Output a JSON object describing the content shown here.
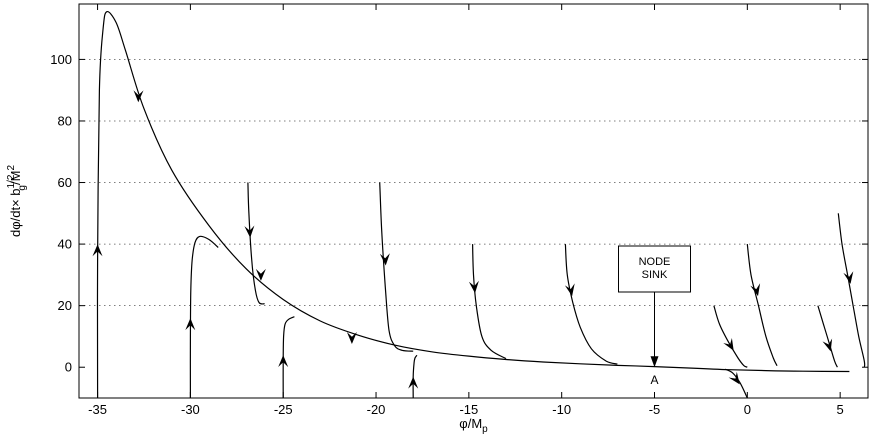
{
  "chart_data": {
    "type": "line",
    "xlabel": "φ/M",
    "xlabel_sub": "p",
    "ylabel": "dφ/dt× b",
    "ylabel_sub": "g",
    "ylabel_sup": "1/2",
    "ylabel_tail": "/M",
    "ylabel_tail_sup": "2",
    "xlim": [
      -36,
      6.5
    ],
    "ylim": [
      -10,
      118
    ],
    "xticks": [
      "-35",
      "-30",
      "-25",
      "-20",
      "-15",
      "-10",
      "-5",
      "0",
      "5"
    ],
    "yticks": [
      "0",
      "20",
      "40",
      "60",
      "80",
      "100"
    ],
    "grid": true,
    "annotation": {
      "box_lines": [
        "NODE",
        "SINK"
      ],
      "point_label": "A",
      "x": -5,
      "y": 0
    },
    "series": [
      {
        "x": [
          -35,
          -35,
          -34.9,
          -34.7,
          -34.5,
          -34.0,
          -33.5,
          -32.5,
          -31,
          -29,
          -27,
          -25,
          -23,
          -21,
          -19,
          -17,
          -15,
          -13,
          -11,
          -9,
          -7,
          -5,
          -3,
          -1,
          1,
          3,
          5.5
        ],
        "y": [
          -10,
          35,
          90,
          110,
          115.5,
          112,
          103,
          84,
          64,
          46,
          32,
          22,
          15,
          10.5,
          7.2,
          5.0,
          3.6,
          2.5,
          1.7,
          1.1,
          0.6,
          0.2,
          -0.3,
          -0.8,
          -1.1,
          -1.3,
          -1.4
        ],
        "arrows": [
          [
            -32.8,
            88,
            1
          ],
          [
            -35,
            38,
            -1
          ],
          [
            -26.2,
            30,
            1
          ],
          [
            -21.3,
            9.5,
            1
          ]
        ]
      },
      {
        "x": [
          -30,
          -30,
          -29.98,
          -29.9,
          -29.75,
          -29.5,
          -29.0,
          -28.5
        ],
        "y": [
          -10,
          10,
          25,
          35,
          40.5,
          42.5,
          41.5,
          38.9
        ],
        "arrows": [
          [
            -30,
            14,
            -1
          ]
        ]
      },
      {
        "x": [
          -25,
          -25,
          -24.98,
          -24.9,
          -24.7,
          -24.4
        ],
        "y": [
          -10,
          3,
          10,
          14,
          15.6,
          16.4
        ],
        "arrows": [
          [
            -25,
            2,
            -1
          ]
        ]
      },
      {
        "x": [
          -18,
          -18,
          -17.95,
          -17.9,
          -17.8
        ],
        "y": [
          -10,
          -3,
          1.5,
          3.0,
          3.9
        ],
        "arrows": [
          [
            -18,
            -5,
            -1
          ]
        ]
      },
      {
        "x": [
          -26.9,
          -26.85,
          -26.7,
          -26.5,
          -26.3,
          -26.0
        ],
        "y": [
          60,
          50,
          35,
          25,
          21,
          20.6
        ],
        "arrows": [
          [
            -26.8,
            44,
            1
          ]
        ]
      },
      {
        "x": [
          -19.8,
          -19.7,
          -19.5,
          -19.3,
          -19.0,
          -18.6,
          -18.0
        ],
        "y": [
          60,
          45,
          26,
          12,
          7,
          5.5,
          5.2
        ],
        "arrows": [
          [
            -19.5,
            35,
            1
          ]
        ]
      },
      {
        "x": [
          -14.8,
          -14.75,
          -14.6,
          -14.3,
          -13.8,
          -13.0
        ],
        "y": [
          40,
          30,
          20,
          10,
          5.5,
          2.8
        ],
        "arrows": [
          [
            -14.7,
            26,
            1
          ]
        ]
      },
      {
        "x": [
          -9.8,
          -9.7,
          -9.4,
          -9.0,
          -8.4,
          -7.6,
          -7.0
        ],
        "y": [
          40,
          30,
          21,
          13,
          6,
          2,
          1.0
        ],
        "arrows": [
          [
            -9.5,
            25,
            1
          ]
        ]
      },
      {
        "x": [
          -1.8,
          -1.5,
          -1.0,
          -0.5,
          -0.2,
          0.0
        ],
        "y": [
          20,
          14,
          8,
          3,
          0.6,
          0.0
        ],
        "arrows": [
          [
            -0.9,
            7,
            1
          ]
        ]
      },
      {
        "x": [
          0.0,
          0.2,
          0.6,
          1.0,
          1.4,
          1.6
        ],
        "y": [
          40,
          30,
          20,
          10,
          3,
          0.5
        ],
        "arrows": [
          [
            0.5,
            25,
            1
          ]
        ]
      },
      {
        "x": [
          3.8,
          4.1,
          4.4,
          4.7,
          4.85
        ],
        "y": [
          20,
          14,
          8,
          2,
          0.0
        ],
        "arrows": [
          [
            4.4,
            7,
            1
          ]
        ]
      },
      {
        "x": [
          4.9,
          5.1,
          5.4,
          5.7,
          6.0,
          6.3,
          6.3
        ],
        "y": [
          50,
          40,
          30,
          20,
          10,
          2,
          0.0
        ],
        "arrows": [
          [
            5.5,
            29,
            1
          ]
        ]
      },
      {
        "x": [
          0.0,
          -0.4,
          -0.8,
          -1.2
        ],
        "y": [
          -10,
          -5,
          -1.8,
          -0.6
        ],
        "arrows": [
          [
            -0.6,
            -4,
            1
          ]
        ]
      }
    ]
  }
}
